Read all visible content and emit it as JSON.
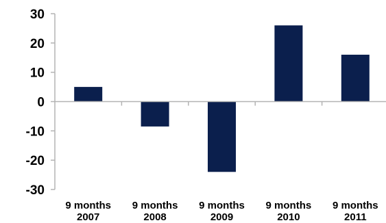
{
  "chart_data": {
    "type": "bar",
    "categories": [
      [
        "9 months",
        "2007"
      ],
      [
        "9 months",
        "2008"
      ],
      [
        "9 months",
        "2009"
      ],
      [
        "9 months",
        "2010"
      ],
      [
        "9 months",
        "2011"
      ]
    ],
    "values": [
      5,
      -8.5,
      -24,
      26,
      16
    ],
    "ylim": [
      -30,
      30
    ],
    "yticks": [
      30,
      20,
      10,
      0,
      -10,
      -20,
      -30
    ],
    "title": "",
    "xlabel": "",
    "ylabel": "",
    "grid": false,
    "legend": "none",
    "bar_color": "#0b1f4d",
    "axis_color": "#b3b3b3"
  }
}
